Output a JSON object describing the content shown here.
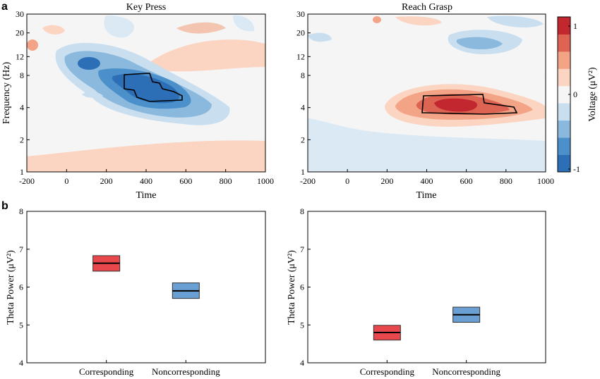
{
  "figure": {
    "panel_a": "a",
    "panel_b": "b"
  },
  "chart_data": [
    {
      "type": "heatmap",
      "panel": "a",
      "title": "Key Press",
      "xlabel": "Time",
      "ylabel": "Frequency (Hz)",
      "x_ticks": [
        -200,
        0,
        200,
        400,
        600,
        800,
        1000
      ],
      "y_ticks": [
        1,
        2,
        4,
        8,
        12,
        20,
        30
      ],
      "xlim": [
        -200,
        1000
      ],
      "ylim": [
        1,
        30
      ],
      "y_scale": "log",
      "colorbar": {
        "label": "Voltage (μV²)",
        "ticks": [
          1,
          0,
          -1
        ],
        "range": [
          -1,
          1
        ],
        "colors": [
          "#2c6fb7",
          "#4b8fcb",
          "#8ab9dd",
          "#c9dff0",
          "#f5f5f5",
          "#fbd4c2",
          "#f3a486",
          "#dd6453",
          "#c2272f"
        ]
      },
      "blobs": [
        {
          "time": 450,
          "freq": 5.8,
          "level": -1.0
        },
        {
          "time": 150,
          "freq": 9.5,
          "level": -0.75
        },
        {
          "time": 600,
          "freq": 4.2,
          "level": -0.4
        }
      ],
      "significance_contour": {
        "time": [
          300,
          560
        ],
        "freq": [
          4.8,
          7.2
        ]
      }
    },
    {
      "type": "heatmap",
      "panel": "a",
      "title": "Reach Grasp",
      "xlabel": "Time",
      "ylabel": "",
      "x_ticks": [
        -200,
        0,
        200,
        400,
        600,
        800,
        1000
      ],
      "y_ticks": [
        1,
        2,
        4,
        8,
        12,
        20,
        30
      ],
      "xlim": [
        -200,
        1000
      ],
      "ylim": [
        1,
        30
      ],
      "y_scale": "log",
      "blobs": [
        {
          "time": 580,
          "freq": 4.3,
          "level": 1.0
        },
        {
          "time": 580,
          "freq": 4.5,
          "level": 0.6
        },
        {
          "time": 700,
          "freq": 16,
          "level": -0.45
        }
      ],
      "significance_contour": {
        "time": [
          390,
          860
        ],
        "freq": [
          3.9,
          5.2
        ]
      }
    },
    {
      "type": "bar",
      "panel": "b",
      "ylabel": "Theta Power (μV²)",
      "categories": [
        "Corresponding",
        "Noncorresponding"
      ],
      "ylim": [
        4,
        8
      ],
      "y_ticks": [
        4,
        5,
        6,
        7,
        8
      ],
      "series": [
        {
          "mean": [
            6.63,
            5.9
          ],
          "low": [
            6.42,
            5.7
          ],
          "high": [
            6.83,
            6.11
          ]
        }
      ],
      "colors": [
        "#e8474b",
        "#6a9fd3"
      ]
    },
    {
      "type": "bar",
      "panel": "b",
      "ylabel": "Theta Power (μV²)",
      "categories": [
        "Corresponding",
        "Noncorresponding"
      ],
      "ylim": [
        4,
        8
      ],
      "y_ticks": [
        4,
        5,
        6,
        7,
        8
      ],
      "series": [
        {
          "mean": [
            4.8,
            5.27
          ],
          "low": [
            4.6,
            5.07
          ],
          "high": [
            4.99,
            5.47
          ]
        }
      ],
      "colors": [
        "#e8474b",
        "#6a9fd3"
      ]
    }
  ]
}
